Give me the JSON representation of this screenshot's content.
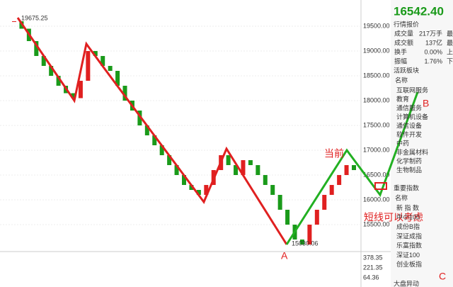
{
  "chart_data": {
    "type": "candlestick",
    "yticks": [
      {
        "value": 19500,
        "label": "19500.00"
      },
      {
        "value": 19000,
        "label": "19000.00"
      },
      {
        "value": 18500,
        "label": "18500.00"
      },
      {
        "value": 18000,
        "label": "18000.00"
      },
      {
        "value": 17500,
        "label": "17500.00"
      },
      {
        "value": 17000,
        "label": "17000.00"
      },
      {
        "value": 16500,
        "label": "16500.00"
      },
      {
        "value": 16000,
        "label": "16000.00"
      },
      {
        "value": 15500,
        "label": "15500.00"
      }
    ],
    "ylim": [
      15000,
      19900
    ],
    "closes": [
      19600,
      19450,
      19200,
      18900,
      18700,
      18500,
      18300,
      18150,
      18050,
      18400,
      19000,
      18900,
      18700,
      18600,
      18300,
      18000,
      17800,
      17500,
      17300,
      17100,
      16900,
      16700,
      16500,
      16300,
      16200,
      16100,
      16300,
      16600,
      16900,
      16700,
      16500,
      16800,
      16700,
      16500,
      16300,
      16100,
      15800,
      15500,
      15200,
      15100,
      15500,
      15800,
      16100,
      16300,
      16500,
      16700,
      16600
    ],
    "high_label": "19675.25",
    "low_label": "15030.06",
    "macd_labels": [
      "378.35",
      "221.35",
      "64.36"
    ],
    "annotations": {
      "current": "当前",
      "short": "短线可以考虑",
      "a": "A",
      "b": "B",
      "c": "C"
    }
  },
  "panel": {
    "price": "16542.40",
    "quote_title": "行情报价",
    "stats": [
      [
        "成交量",
        "217万手",
        "最"
      ],
      [
        "成交额",
        "137亿",
        "最"
      ],
      [
        "换手",
        "0.00%",
        "上"
      ],
      [
        "振幅",
        "1.76%",
        "下"
      ]
    ],
    "sector_title": "活跃板块",
    "name_header": "名称",
    "sectors": [
      "互联网服务",
      "教育",
      "通信服务",
      "计算机设备",
      "通信设备",
      "软件开发",
      "中药",
      "非金属材料",
      "化学制药",
      "生物制品"
    ],
    "index_title": "重要指数",
    "index_header": "名称",
    "indices": [
      "新 指 数",
      "中小100",
      "成份B指",
      "深证成指",
      "乐富指数",
      "深证100",
      "创业板指"
    ],
    "footer": "大盘异动"
  }
}
